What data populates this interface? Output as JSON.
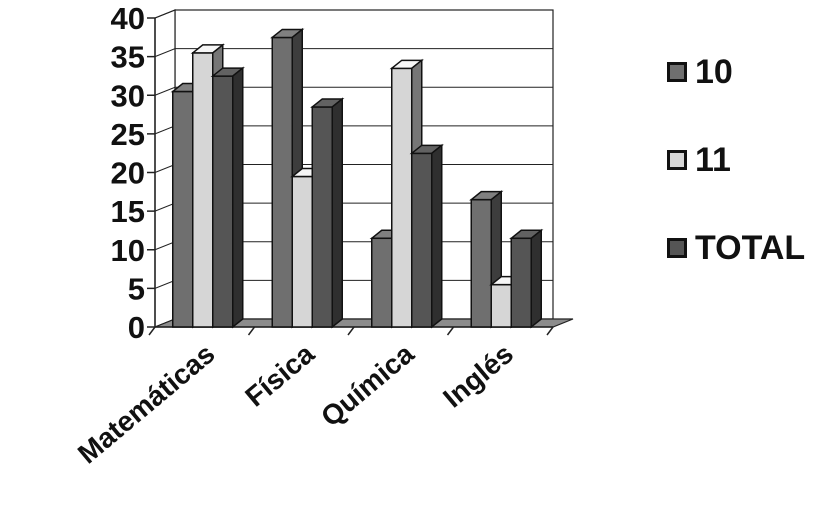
{
  "chart_data": {
    "type": "bar",
    "categories": [
      "Matemáticas",
      "Física",
      "Química",
      "Inglés"
    ],
    "series": [
      {
        "name": "10",
        "values": [
          31,
          38,
          12,
          17
        ],
        "color": "#6f6f6f"
      },
      {
        "name": "11",
        "values": [
          36,
          20,
          34,
          6
        ],
        "color": "#d6d6d6"
      },
      {
        "name": "TOTAL",
        "values": [
          33,
          29,
          23,
          12
        ],
        "color": "#555555"
      }
    ],
    "ylim": [
      0,
      40
    ],
    "yticks": [
      "0",
      "5",
      "10",
      "15",
      "20",
      "25",
      "30",
      "35",
      "40"
    ],
    "grid": true,
    "legend_position": "right",
    "three_d": true
  }
}
